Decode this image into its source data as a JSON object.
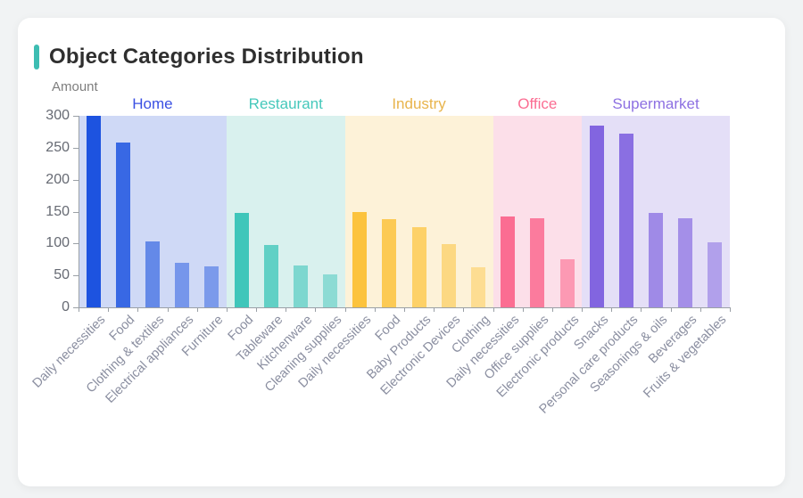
{
  "page": {
    "background_color": "#f1f3f4"
  },
  "card": {
    "title": "Object Categories Distribution",
    "accent_color": "#3dbdb2"
  },
  "chart_data": {
    "type": "bar",
    "title": "Object Categories Distribution",
    "xlabel": "",
    "ylabel": "Amount",
    "ylim": [
      0,
      300
    ],
    "yticks": [
      0,
      50,
      100,
      150,
      200,
      250,
      300
    ],
    "grid": false,
    "legend_position": "none",
    "axis_color": "#9aa0a6",
    "y_tick_label_color": "#666a73",
    "x_tick_label_color": "#8a8ea0",
    "x_label_rotation_deg": 45,
    "groups": [
      {
        "name": "Home",
        "header_color": "#3a50e3",
        "bar_color": "#1d53e0",
        "band_color": "#cfd9f6",
        "bars": [
          {
            "label": "Daily necessities",
            "value": 300,
            "opacity": 1
          },
          {
            "label": "Food",
            "value": 258,
            "opacity": 0.85
          },
          {
            "label": "Clothing & textiles",
            "value": 103,
            "opacity": 0.6
          },
          {
            "label": "Electrical appliances",
            "value": 70,
            "opacity": 0.5
          },
          {
            "label": "Furniture",
            "value": 64,
            "opacity": 0.47
          }
        ]
      },
      {
        "name": "Restaurant",
        "header_color": "#45c8bb",
        "bar_color": "#3fc6ba",
        "band_color": "#d9f1ee",
        "bars": [
          {
            "label": "Food",
            "value": 148,
            "opacity": 1
          },
          {
            "label": "Tableware",
            "value": 97,
            "opacity": 0.78
          },
          {
            "label": "Kitchenware",
            "value": 65,
            "opacity": 0.6
          },
          {
            "label": "Cleaning supplies",
            "value": 51,
            "opacity": 0.5
          }
        ]
      },
      {
        "name": "Industry",
        "header_color": "#e8b44c",
        "bar_color": "#fcc33d",
        "band_color": "#fdf2d8",
        "bars": [
          {
            "label": "Daily necessities",
            "value": 150,
            "opacity": 1
          },
          {
            "label": "Food",
            "value": 138,
            "opacity": 0.85
          },
          {
            "label": "Baby Products",
            "value": 126,
            "opacity": 0.72
          },
          {
            "label": "Electronic Devices",
            "value": 99,
            "opacity": 0.55
          },
          {
            "label": "Clothing",
            "value": 63,
            "opacity": 0.45
          }
        ]
      },
      {
        "name": "Office",
        "header_color": "#fb6d92",
        "bar_color": "#fb6d92",
        "band_color": "#fcdfe9",
        "bars": [
          {
            "label": "Daily necessities",
            "value": 142,
            "opacity": 1
          },
          {
            "label": "Office supplies",
            "value": 139,
            "opacity": 0.88
          },
          {
            "label": "Electronic products",
            "value": 75,
            "opacity": 0.62
          }
        ]
      },
      {
        "name": "Supermarket",
        "header_color": "#8d70e2",
        "bar_color": "#8265e0",
        "band_color": "#e4dff7",
        "bars": [
          {
            "label": "Snacks",
            "value": 285,
            "opacity": 1
          },
          {
            "label": "Personal care products",
            "value": 272,
            "opacity": 0.92
          },
          {
            "label": "Seasonings & oils",
            "value": 148,
            "opacity": 0.7
          },
          {
            "label": "Beverages",
            "value": 140,
            "opacity": 0.66
          },
          {
            "label": "Fruits & vegetables",
            "value": 102,
            "opacity": 0.52
          }
        ]
      }
    ]
  }
}
